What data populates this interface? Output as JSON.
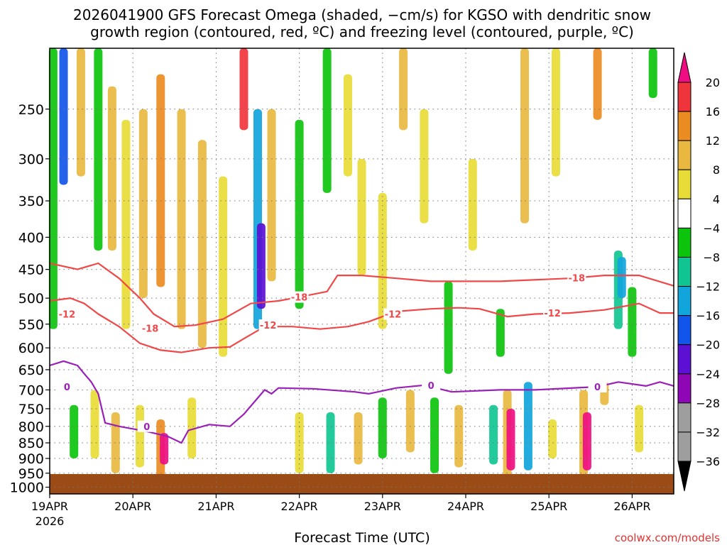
{
  "chart_data": {
    "type": "heatmap",
    "title_lines": [
      "2026041900 GFS Forecast Omega (shaded, −cm/s) for KGSO with dendritic snow",
      "growth region (contoured, red, ºC) and freezing level (contoured, purple, ºC)"
    ],
    "xlabel": "Forecast Time (UTC)",
    "credit": "coolwx.com/models",
    "x_ticks": [
      "19APR",
      "20APR",
      "21APR",
      "22APR",
      "23APR",
      "24APR",
      "25APR",
      "26APR"
    ],
    "x_year": "2026",
    "x_range_hours": [
      0,
      180
    ],
    "y_ticks": [
      250,
      300,
      350,
      400,
      450,
      500,
      550,
      600,
      650,
      700,
      750,
      800,
      850,
      900,
      950,
      1000
    ],
    "y_range_hpa": [
      200,
      1025
    ],
    "y_scale": "log-pressure (inverted)",
    "grid": true,
    "colorbar": {
      "labels": [
        "20",
        "16",
        "12",
        "8",
        "4",
        "−4",
        "−8",
        "−12",
        "−16",
        "−20",
        "−24",
        "−28",
        "−32",
        "−36"
      ],
      "colors": [
        "#ef0d83",
        "#f0343c",
        "#eb8c22",
        "#e8b840",
        "#e8dc37",
        "#ffffff",
        "#0dc40d",
        "#10c591",
        "#11a5dc",
        "#1155ea",
        "#5b10d4",
        "#8f06b6",
        "#9e9e9e",
        "#000000"
      ]
    },
    "omega_cells": [
      {
        "t": 4,
        "p1": 200,
        "p2": 330,
        "v": -18
      },
      {
        "t": 1,
        "p1": 200,
        "p2": 560,
        "v": -8
      },
      {
        "t": 9,
        "p1": 200,
        "p2": 320,
        "v": 8
      },
      {
        "t": 14,
        "p1": 200,
        "p2": 420,
        "v": -8
      },
      {
        "t": 18,
        "p1": 230,
        "p2": 420,
        "v": 6
      },
      {
        "t": 22,
        "p1": 260,
        "p2": 560,
        "v": 5
      },
      {
        "t": 27,
        "p1": 250,
        "p2": 500,
        "v": 9
      },
      {
        "t": 32,
        "p1": 220,
        "p2": 480,
        "v": 12
      },
      {
        "t": 38,
        "p1": 250,
        "p2": 560,
        "v": 7
      },
      {
        "t": 44,
        "p1": 280,
        "p2": 600,
        "v": 6
      },
      {
        "t": 50,
        "p1": 320,
        "p2": 620,
        "v": 5
      },
      {
        "t": 56,
        "p1": 200,
        "p2": 270,
        "v": 16
      },
      {
        "t": 60,
        "p1": 250,
        "p2": 560,
        "v": -14
      },
      {
        "t": 61,
        "p1": 380,
        "p2": 520,
        "v": -22
      },
      {
        "t": 64,
        "p1": 250,
        "p2": 470,
        "v": 6
      },
      {
        "t": 72,
        "p1": 260,
        "p2": 520,
        "v": -8
      },
      {
        "t": 80,
        "p1": 200,
        "p2": 340,
        "v": -7
      },
      {
        "t": 86,
        "p1": 220,
        "p2": 320,
        "v": 5
      },
      {
        "t": 90,
        "p1": 300,
        "p2": 460,
        "v": 4
      },
      {
        "t": 96,
        "p1": 340,
        "p2": 560,
        "v": 5
      },
      {
        "t": 102,
        "p1": 200,
        "p2": 270,
        "v": 6
      },
      {
        "t": 108,
        "p1": 250,
        "p2": 380,
        "v": 5
      },
      {
        "t": 115,
        "p1": 470,
        "p2": 660,
        "v": -8
      },
      {
        "t": 122,
        "p1": 300,
        "p2": 420,
        "v": 5
      },
      {
        "t": 130,
        "p1": 520,
        "p2": 620,
        "v": -8
      },
      {
        "t": 137,
        "p1": 200,
        "p2": 380,
        "v": 6
      },
      {
        "t": 146,
        "p1": 200,
        "p2": 320,
        "v": 5
      },
      {
        "t": 158,
        "p1": 200,
        "p2": 260,
        "v": 12
      },
      {
        "t": 164,
        "p1": 420,
        "p2": 560,
        "v": -12
      },
      {
        "t": 165,
        "p1": 430,
        "p2": 500,
        "v": -16
      },
      {
        "t": 168,
        "p1": 480,
        "p2": 620,
        "v": -8
      },
      {
        "t": 174,
        "p1": 200,
        "p2": 240,
        "v": -8
      },
      {
        "t": 7,
        "p1": 740,
        "p2": 900,
        "v": -8
      },
      {
        "t": 13,
        "p1": 700,
        "p2": 900,
        "v": 4
      },
      {
        "t": 19,
        "p1": 760,
        "p2": 950,
        "v": 6
      },
      {
        "t": 26,
        "p1": 740,
        "p2": 930,
        "v": 5
      },
      {
        "t": 32,
        "p1": 780,
        "p2": 960,
        "v": 12
      },
      {
        "t": 33,
        "p1": 820,
        "p2": 920,
        "v": 18
      },
      {
        "t": 41,
        "p1": 720,
        "p2": 900,
        "v": 4
      },
      {
        "t": 72,
        "p1": 760,
        "p2": 950,
        "v": 5
      },
      {
        "t": 81,
        "p1": 760,
        "p2": 950,
        "v": -10
      },
      {
        "t": 89,
        "p1": 760,
        "p2": 920,
        "v": 8
      },
      {
        "t": 96,
        "p1": 720,
        "p2": 900,
        "v": -8
      },
      {
        "t": 104,
        "p1": 700,
        "p2": 880,
        "v": 6
      },
      {
        "t": 111,
        "p1": 720,
        "p2": 950,
        "v": -8
      },
      {
        "t": 118,
        "p1": 740,
        "p2": 930,
        "v": 6
      },
      {
        "t": 128,
        "p1": 740,
        "p2": 920,
        "v": -10
      },
      {
        "t": 132,
        "p1": 700,
        "p2": 960,
        "v": 8
      },
      {
        "t": 133,
        "p1": 750,
        "p2": 940,
        "v": 20
      },
      {
        "t": 138,
        "p1": 680,
        "p2": 940,
        "v": -14
      },
      {
        "t": 145,
        "p1": 780,
        "p2": 900,
        "v": 5
      },
      {
        "t": 154,
        "p1": 700,
        "p2": 960,
        "v": 8
      },
      {
        "t": 155,
        "p1": 760,
        "p2": 940,
        "v": 20
      },
      {
        "t": 160,
        "p1": 680,
        "p2": 740,
        "v": 6
      },
      {
        "t": 170,
        "p1": 740,
        "p2": 880,
        "v": 5
      }
    ],
    "contours": [
      {
        "name": "-18",
        "color": "#f04848",
        "label_at": [
          [
            29,
            558
          ],
          [
            72,
            498
          ],
          [
            152,
            464
          ]
        ],
        "points": [
          [
            0,
            440
          ],
          [
            8,
            450
          ],
          [
            14,
            440
          ],
          [
            20,
            465
          ],
          [
            26,
            500
          ],
          [
            30,
            530
          ],
          [
            36,
            555
          ],
          [
            42,
            552
          ],
          [
            50,
            540
          ],
          [
            58,
            510
          ],
          [
            66,
            505
          ],
          [
            72,
            498
          ],
          [
            80,
            488
          ],
          [
            83,
            460
          ],
          [
            90,
            460
          ],
          [
            100,
            465
          ],
          [
            110,
            470
          ],
          [
            130,
            470
          ],
          [
            150,
            465
          ],
          [
            160,
            460
          ],
          [
            170,
            460
          ],
          [
            180,
            478
          ]
        ]
      },
      {
        "name": "-12",
        "color": "#f04848",
        "label_at": [
          [
            5,
            530
          ],
          [
            63,
            552
          ],
          [
            99,
            530
          ],
          [
            145,
            528
          ]
        ],
        "points": [
          [
            0,
            505
          ],
          [
            6,
            500
          ],
          [
            10,
            510
          ],
          [
            14,
            530
          ],
          [
            20,
            555
          ],
          [
            26,
            590
          ],
          [
            32,
            605
          ],
          [
            38,
            610
          ],
          [
            46,
            600
          ],
          [
            52,
            598
          ],
          [
            56,
            580
          ],
          [
            62,
            555
          ],
          [
            70,
            555
          ],
          [
            78,
            560
          ],
          [
            86,
            555
          ],
          [
            92,
            545
          ],
          [
            100,
            525
          ],
          [
            110,
            520
          ],
          [
            118,
            518
          ],
          [
            124,
            520
          ],
          [
            132,
            535
          ],
          [
            140,
            530
          ],
          [
            150,
            528
          ],
          [
            160,
            522
          ],
          [
            170,
            510
          ],
          [
            176,
            528
          ],
          [
            180,
            528
          ]
        ]
      },
      {
        "name": "0",
        "color": "#9a20b8",
        "label_at": [
          [
            5,
            692
          ],
          [
            28,
            800
          ],
          [
            110,
            688
          ],
          [
            158,
            692
          ]
        ],
        "points": [
          [
            0,
            640
          ],
          [
            4,
            630
          ],
          [
            8,
            640
          ],
          [
            10,
            660
          ],
          [
            12,
            680
          ],
          [
            14,
            710
          ],
          [
            16,
            790
          ],
          [
            20,
            800
          ],
          [
            28,
            815
          ],
          [
            34,
            830
          ],
          [
            38,
            850
          ],
          [
            40,
            812
          ],
          [
            46,
            795
          ],
          [
            52,
            800
          ],
          [
            56,
            765
          ],
          [
            62,
            700
          ],
          [
            64,
            710
          ],
          [
            66,
            695
          ],
          [
            76,
            697
          ],
          [
            88,
            705
          ],
          [
            92,
            710
          ],
          [
            100,
            695
          ],
          [
            108,
            688
          ],
          [
            116,
            705
          ],
          [
            130,
            700
          ],
          [
            140,
            700
          ],
          [
            158,
            692
          ],
          [
            164,
            680
          ],
          [
            172,
            690
          ],
          [
            176,
            680
          ],
          [
            180,
            690
          ]
        ]
      }
    ]
  }
}
